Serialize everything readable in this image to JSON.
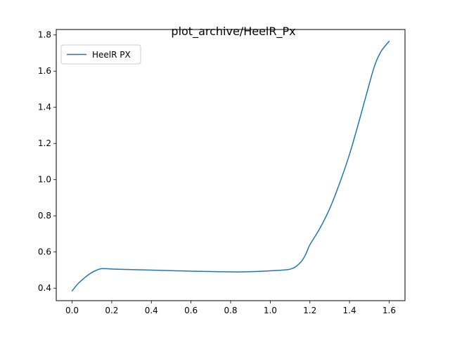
{
  "chart_data": {
    "type": "line",
    "title": "plot_archive/HeelR_Px",
    "xlabel": "",
    "ylabel": "",
    "xlim": [
      -0.08,
      1.68
    ],
    "ylim": [
      0.331,
      1.83
    ],
    "xticks": [
      0.0,
      0.2,
      0.4,
      0.6,
      0.8,
      1.0,
      1.2,
      1.4,
      1.6
    ],
    "xtick_labels": [
      "0.0",
      "0.2",
      "0.4",
      "0.6",
      "0.8",
      "1.0",
      "1.2",
      "1.4",
      "1.6"
    ],
    "yticks": [
      0.4,
      0.6,
      0.8,
      1.0,
      1.2,
      1.4,
      1.6,
      1.8
    ],
    "ytick_labels": [
      "0.4",
      "0.6",
      "0.8",
      "1.0",
      "1.2",
      "1.4",
      "1.6",
      "1.8"
    ],
    "grid": false,
    "legend_position": "top-left",
    "series": [
      {
        "name": "HeelR PX",
        "color": "#1f77b4",
        "x": [
          0.0,
          0.03,
          0.06,
          0.09,
          0.12,
          0.15,
          0.2,
          0.3,
          0.4,
          0.5,
          0.6,
          0.7,
          0.8,
          0.85,
          0.9,
          1.0,
          1.05,
          1.1,
          1.13,
          1.16,
          1.18,
          1.2,
          1.25,
          1.3,
          1.35,
          1.4,
          1.45,
          1.5,
          1.53,
          1.56,
          1.6
        ],
        "y": [
          0.385,
          0.425,
          0.455,
          0.48,
          0.498,
          0.508,
          0.506,
          0.503,
          0.5,
          0.497,
          0.494,
          0.492,
          0.49,
          0.49,
          0.491,
          0.496,
          0.499,
          0.505,
          0.52,
          0.552,
          0.59,
          0.64,
          0.73,
          0.84,
          0.98,
          1.14,
          1.33,
          1.53,
          1.64,
          1.71,
          1.765
        ]
      }
    ]
  }
}
